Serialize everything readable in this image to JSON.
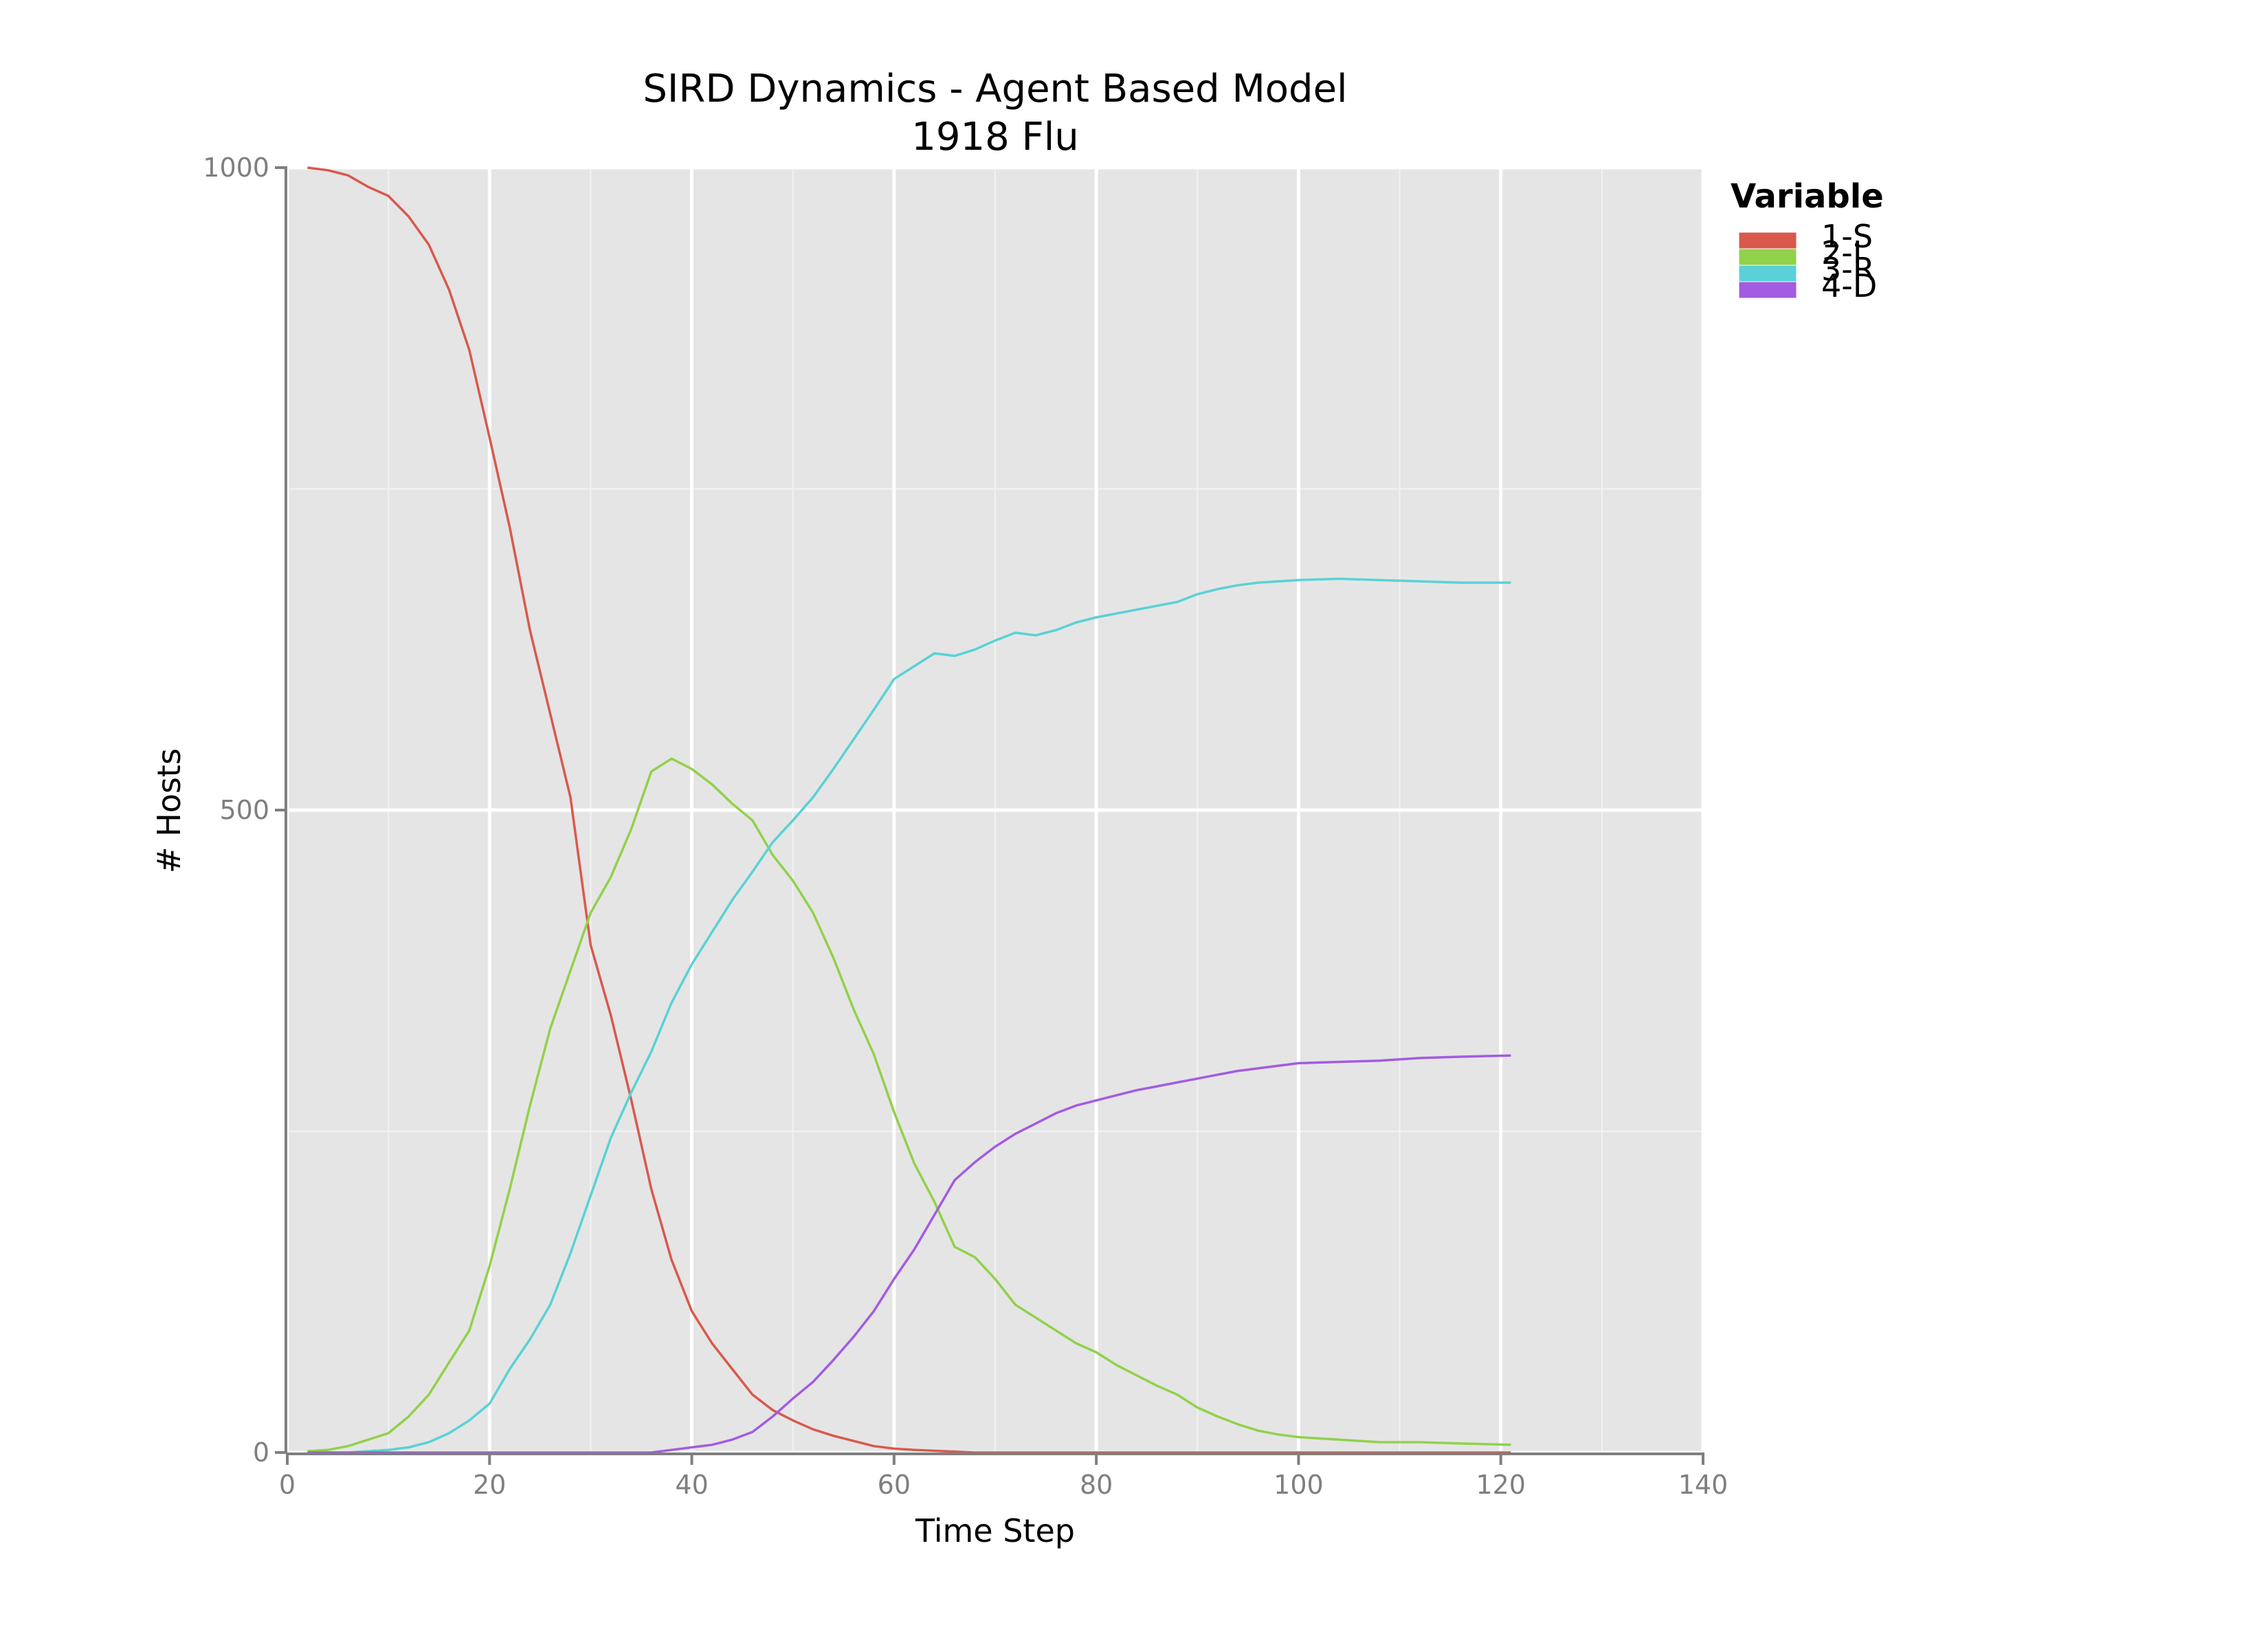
{
  "chart_data": {
    "type": "line",
    "title": "SIRD Dynamics - Agent Based Model",
    "subtitle": "1918 Flu",
    "xlabel": "Time Step",
    "ylabel": "# Hosts",
    "xlim": [
      0,
      140
    ],
    "ylim": [
      0,
      1000
    ],
    "x_ticks": [
      0,
      20,
      40,
      60,
      80,
      100,
      120,
      140
    ],
    "x_tick_labels": [
      "0",
      "20",
      "40",
      "60",
      "80",
      "100",
      "120",
      "140"
    ],
    "y_ticks": [
      0,
      500,
      1000
    ],
    "y_tick_labels": [
      "0",
      "500",
      "1000"
    ],
    "grid": true,
    "legend": {
      "title": "Variable",
      "placement": "top-right-outside"
    },
    "series": [
      {
        "name": "1-S",
        "color": "#d9594c",
        "points": [
          [
            2,
            1000
          ],
          [
            4,
            998
          ],
          [
            6,
            994
          ],
          [
            8,
            985
          ],
          [
            10,
            978
          ],
          [
            12,
            962
          ],
          [
            14,
            940
          ],
          [
            16,
            905
          ],
          [
            18,
            858
          ],
          [
            20,
            790
          ],
          [
            22,
            720
          ],
          [
            24,
            640
          ],
          [
            26,
            575
          ],
          [
            28,
            510
          ],
          [
            30,
            395
          ],
          [
            32,
            340
          ],
          [
            34,
            275
          ],
          [
            36,
            205
          ],
          [
            38,
            150
          ],
          [
            40,
            110
          ],
          [
            42,
            85
          ],
          [
            44,
            65
          ],
          [
            46,
            45
          ],
          [
            48,
            33
          ],
          [
            50,
            25
          ],
          [
            52,
            18
          ],
          [
            54,
            13
          ],
          [
            56,
            9
          ],
          [
            58,
            5
          ],
          [
            60,
            3
          ],
          [
            62,
            2
          ],
          [
            65,
            1
          ],
          [
            68,
            0
          ],
          [
            121,
            0
          ]
        ]
      },
      {
        "name": "2-I",
        "color": "#91d14b",
        "points": [
          [
            2,
            1
          ],
          [
            4,
            2
          ],
          [
            6,
            5
          ],
          [
            8,
            10
          ],
          [
            10,
            15
          ],
          [
            12,
            28
          ],
          [
            14,
            45
          ],
          [
            16,
            70
          ],
          [
            18,
            95
          ],
          [
            20,
            145
          ],
          [
            22,
            205
          ],
          [
            24,
            270
          ],
          [
            26,
            330
          ],
          [
            28,
            375
          ],
          [
            30,
            420
          ],
          [
            32,
            448
          ],
          [
            34,
            485
          ],
          [
            36,
            530
          ],
          [
            38,
            540
          ],
          [
            40,
            532
          ],
          [
            42,
            520
          ],
          [
            44,
            505
          ],
          [
            46,
            492
          ],
          [
            48,
            465
          ],
          [
            50,
            445
          ],
          [
            52,
            420
          ],
          [
            54,
            385
          ],
          [
            56,
            345
          ],
          [
            58,
            310
          ],
          [
            60,
            265
          ],
          [
            62,
            225
          ],
          [
            64,
            195
          ],
          [
            66,
            160
          ],
          [
            68,
            152
          ],
          [
            70,
            135
          ],
          [
            72,
            115
          ],
          [
            74,
            105
          ],
          [
            76,
            95
          ],
          [
            78,
            85
          ],
          [
            80,
            78
          ],
          [
            82,
            68
          ],
          [
            84,
            60
          ],
          [
            86,
            52
          ],
          [
            88,
            45
          ],
          [
            90,
            35
          ],
          [
            92,
            28
          ],
          [
            94,
            22
          ],
          [
            96,
            17
          ],
          [
            98,
            14
          ],
          [
            100,
            12
          ],
          [
            104,
            10
          ],
          [
            108,
            8
          ],
          [
            112,
            8
          ],
          [
            116,
            7
          ],
          [
            121,
            6
          ]
        ]
      },
      {
        "name": "3-R",
        "color": "#5ad1d6",
        "points": [
          [
            2,
            0
          ],
          [
            6,
            0
          ],
          [
            8,
            1
          ],
          [
            10,
            2
          ],
          [
            12,
            4
          ],
          [
            14,
            8
          ],
          [
            16,
            15
          ],
          [
            18,
            25
          ],
          [
            20,
            38
          ],
          [
            22,
            65
          ],
          [
            24,
            88
          ],
          [
            26,
            115
          ],
          [
            28,
            155
          ],
          [
            30,
            200
          ],
          [
            32,
            245
          ],
          [
            34,
            280
          ],
          [
            36,
            312
          ],
          [
            38,
            350
          ],
          [
            40,
            380
          ],
          [
            42,
            405
          ],
          [
            44,
            430
          ],
          [
            46,
            452
          ],
          [
            48,
            475
          ],
          [
            50,
            492
          ],
          [
            52,
            510
          ],
          [
            54,
            532
          ],
          [
            56,
            555
          ],
          [
            58,
            578
          ],
          [
            60,
            602
          ],
          [
            62,
            612
          ],
          [
            64,
            622
          ],
          [
            66,
            620
          ],
          [
            68,
            625
          ],
          [
            70,
            632
          ],
          [
            72,
            638
          ],
          [
            74,
            636
          ],
          [
            76,
            640
          ],
          [
            78,
            646
          ],
          [
            80,
            650
          ],
          [
            82,
            653
          ],
          [
            84,
            656
          ],
          [
            86,
            659
          ],
          [
            88,
            662
          ],
          [
            90,
            668
          ],
          [
            92,
            672
          ],
          [
            94,
            675
          ],
          [
            96,
            677
          ],
          [
            100,
            679
          ],
          [
            104,
            680
          ],
          [
            108,
            679
          ],
          [
            112,
            678
          ],
          [
            116,
            677
          ],
          [
            121,
            677
          ]
        ]
      },
      {
        "name": "4-D",
        "color": "#a35be2",
        "points": [
          [
            2,
            0
          ],
          [
            36,
            0
          ],
          [
            38,
            2
          ],
          [
            40,
            4
          ],
          [
            42,
            6
          ],
          [
            44,
            10
          ],
          [
            46,
            16
          ],
          [
            48,
            28
          ],
          [
            50,
            42
          ],
          [
            52,
            55
          ],
          [
            54,
            72
          ],
          [
            56,
            90
          ],
          [
            58,
            110
          ],
          [
            60,
            135
          ],
          [
            62,
            158
          ],
          [
            64,
            185
          ],
          [
            66,
            212
          ],
          [
            68,
            226
          ],
          [
            70,
            238
          ],
          [
            72,
            248
          ],
          [
            74,
            256
          ],
          [
            76,
            264
          ],
          [
            78,
            270
          ],
          [
            80,
            274
          ],
          [
            82,
            278
          ],
          [
            84,
            282
          ],
          [
            86,
            285
          ],
          [
            88,
            288
          ],
          [
            90,
            291
          ],
          [
            92,
            294
          ],
          [
            94,
            297
          ],
          [
            96,
            299
          ],
          [
            98,
            301
          ],
          [
            100,
            303
          ],
          [
            104,
            304
          ],
          [
            108,
            305
          ],
          [
            112,
            307
          ],
          [
            116,
            308
          ],
          [
            121,
            309
          ]
        ]
      }
    ]
  }
}
